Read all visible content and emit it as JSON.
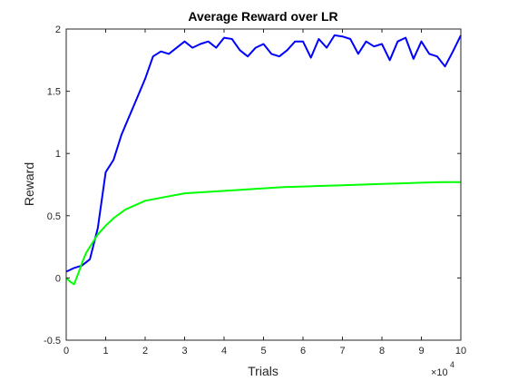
{
  "chart_data": {
    "type": "line",
    "title": "Average Reward over LR",
    "xlabel": "Trials",
    "ylabel": "Reward",
    "xlim": [
      0,
      10
    ],
    "ylim": [
      -0.5,
      2
    ],
    "x_scale_multiplier": "×10",
    "x_scale_exponent": "4",
    "xticks": [
      "0",
      "1",
      "2",
      "3",
      "4",
      "5",
      "6",
      "7",
      "8",
      "9",
      "10"
    ],
    "yticks": [
      "-0.5",
      "0",
      "0.5",
      "1",
      "1.5",
      "2"
    ],
    "grid": false,
    "series": [
      {
        "color": "#0000ff",
        "x": [
          0,
          0.2,
          0.4,
          0.6,
          0.8,
          1.0,
          1.2,
          1.4,
          1.6,
          1.8,
          2.0,
          2.2,
          2.4,
          2.6,
          2.8,
          3.0,
          3.2,
          3.4,
          3.6,
          3.8,
          4.0,
          4.2,
          4.4,
          4.6,
          4.8,
          5.0,
          5.2,
          5.4,
          5.6,
          5.8,
          6.0,
          6.2,
          6.4,
          6.6,
          6.8,
          7.0,
          7.2,
          7.4,
          7.6,
          7.8,
          8.0,
          8.2,
          8.4,
          8.6,
          8.8,
          9.0,
          9.2,
          9.4,
          9.6,
          9.8,
          10.0
        ],
        "y": [
          0.05,
          0.08,
          0.1,
          0.15,
          0.4,
          0.85,
          0.95,
          1.15,
          1.3,
          1.45,
          1.6,
          1.78,
          1.82,
          1.8,
          1.85,
          1.9,
          1.85,
          1.88,
          1.9,
          1.85,
          1.93,
          1.92,
          1.83,
          1.78,
          1.85,
          1.88,
          1.8,
          1.78,
          1.83,
          1.9,
          1.9,
          1.77,
          1.92,
          1.85,
          1.95,
          1.94,
          1.92,
          1.8,
          1.9,
          1.86,
          1.88,
          1.75,
          1.9,
          1.93,
          1.76,
          1.9,
          1.8,
          1.78,
          1.7,
          1.82,
          1.95
        ]
      },
      {
        "color": "#00ff00",
        "x": [
          0,
          0.1,
          0.2,
          0.3,
          0.4,
          0.5,
          0.6,
          0.8,
          1.0,
          1.2,
          1.5,
          2.0,
          2.5,
          3.0,
          3.5,
          4.0,
          4.5,
          5.0,
          5.5,
          6.0,
          6.5,
          7.0,
          7.5,
          8.0,
          8.5,
          9.0,
          9.5,
          10.0
        ],
        "y": [
          0.0,
          -0.03,
          -0.05,
          0.03,
          0.12,
          0.2,
          0.25,
          0.35,
          0.42,
          0.48,
          0.55,
          0.62,
          0.65,
          0.68,
          0.69,
          0.7,
          0.71,
          0.72,
          0.73,
          0.735,
          0.74,
          0.745,
          0.75,
          0.755,
          0.76,
          0.765,
          0.77,
          0.77
        ]
      }
    ]
  }
}
